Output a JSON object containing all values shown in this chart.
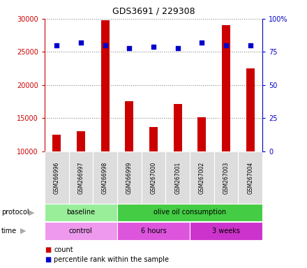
{
  "title": "GDS3691 / 229308",
  "samples": [
    "GSM266996",
    "GSM266997",
    "GSM266998",
    "GSM266999",
    "GSM267000",
    "GSM267001",
    "GSM267002",
    "GSM267003",
    "GSM267004"
  ],
  "bar_values": [
    12500,
    13000,
    29800,
    17600,
    13700,
    17200,
    15200,
    29000,
    22500
  ],
  "bar_base": 10000,
  "percentile_values": [
    80,
    82,
    80,
    78,
    79,
    78,
    82,
    80,
    80
  ],
  "bar_color": "#cc0000",
  "percentile_color": "#0000cc",
  "ylim_left": [
    10000,
    30000
  ],
  "ylim_right": [
    0,
    100
  ],
  "yticks_left": [
    10000,
    15000,
    20000,
    25000,
    30000
  ],
  "yticks_right": [
    0,
    25,
    50,
    75,
    100
  ],
  "grid_color": "#888888",
  "protocol_groups": [
    {
      "label": "baseline",
      "start": 0,
      "end": 3,
      "color": "#99ee99"
    },
    {
      "label": "olive oil consumption",
      "start": 3,
      "end": 9,
      "color": "#44cc44"
    }
  ],
  "time_groups": [
    {
      "label": "control",
      "start": 0,
      "end": 3,
      "color": "#ee99ee"
    },
    {
      "label": "6 hours",
      "start": 3,
      "end": 6,
      "color": "#dd55dd"
    },
    {
      "label": "3 weeks",
      "start": 6,
      "end": 9,
      "color": "#cc33cc"
    }
  ],
  "left_axis_color": "#cc0000",
  "right_axis_color": "#0000cc",
  "background_color": "#ffffff",
  "bar_width": 0.35
}
